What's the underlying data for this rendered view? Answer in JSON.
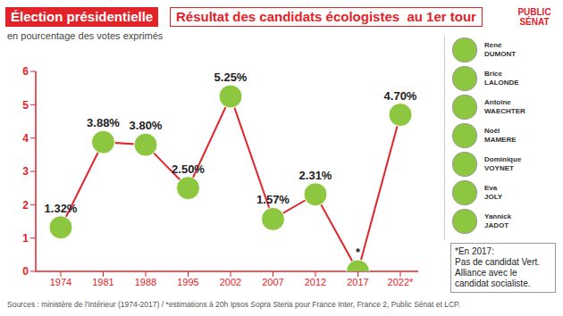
{
  "chart_data": {
    "type": "line",
    "title": "Élection présidentielle",
    "subtitle": "Résultat des candidats écologistes  au 1er tour",
    "y_label": "en pourcentage des votes exprimés",
    "categories": [
      "1974",
      "1981",
      "1988",
      "1995",
      "2002",
      "2007",
      "2012",
      "2017",
      "2022*"
    ],
    "values": [
      1.32,
      3.88,
      3.8,
      2.5,
      5.25,
      1.57,
      2.31,
      0,
      4.7
    ],
    "value_labels": [
      "1.32%",
      "3.88%",
      "3.80%",
      "2.50%",
      "5.25%",
      "1.57%",
      "2.31%",
      "*",
      "4.70%"
    ],
    "color": "#e2232a",
    "marker": "circle",
    "data_labels": true,
    "grid": false,
    "ylim": [
      0,
      6
    ],
    "yticks": [
      0,
      1,
      2,
      3,
      4,
      5,
      6
    ],
    "candidates": [
      {
        "first": "René",
        "last": "DUMONT"
      },
      {
        "first": "Brice",
        "last": "LALONDE"
      },
      {
        "first": "Antoine",
        "last": "WAECHTER"
      },
      {
        "first": "Noël",
        "last": "MAMERE"
      },
      {
        "first": "Dominique",
        "last": "VOYNET"
      },
      {
        "first": "Eva",
        "last": "JOLY"
      },
      {
        "first": "Yannick",
        "last": "JADOT"
      }
    ],
    "footnote": "*En 2017:\nPas de candidat Vert.\nAlliance avec le candidat socialiste.",
    "source": "Sources : ministère de l'Intérieur (1974-2017) / *estimations à 20h Ipsos Sopra Steria pour France Inter, France 2, Public Sénat et LCP.",
    "logo": "PUBLIC SÉNAT"
  }
}
